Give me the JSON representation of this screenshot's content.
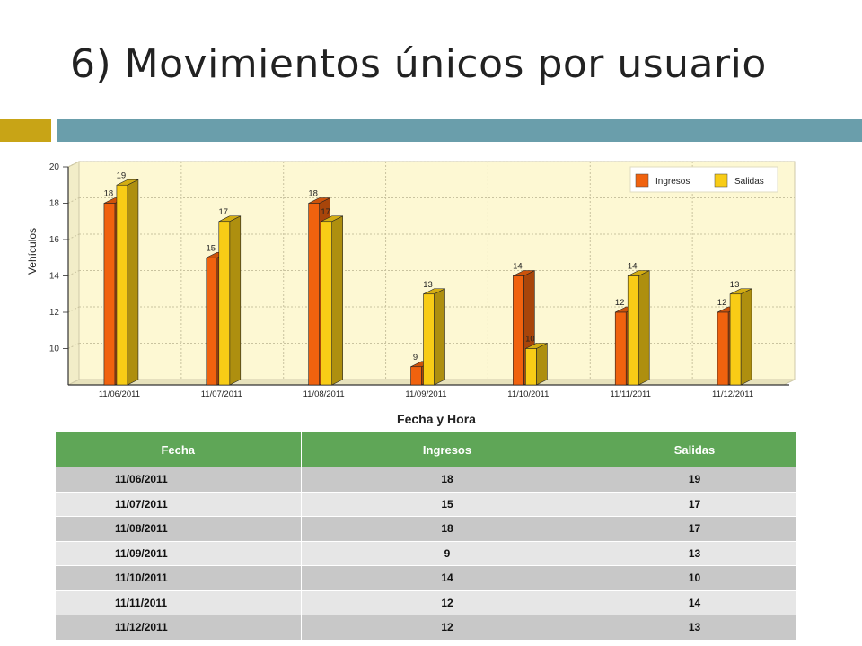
{
  "slide": {
    "title": "6) Movimientos únicos por usuario"
  },
  "colors": {
    "accent_gold": "#c8a416",
    "accent_teal": "#6a9eab",
    "ingresos": "#f0620e",
    "salidas": "#f8cc16",
    "table_header": "#5fa657"
  },
  "chart_data": {
    "type": "bar",
    "categories": [
      "11/06/2011",
      "11/07/2011",
      "11/08/2011",
      "11/09/2011",
      "11/10/2011",
      "11/11/2011",
      "11/12/2011"
    ],
    "series": [
      {
        "name": "Ingresos",
        "values": [
          18,
          15,
          18,
          9,
          14,
          12,
          12
        ]
      },
      {
        "name": "Salidas",
        "values": [
          19,
          17,
          17,
          13,
          10,
          14,
          13
        ]
      }
    ],
    "title": "",
    "xlabel": "Fecha y Hora",
    "ylabel": "Vehículos",
    "ylim": [
      8,
      20
    ],
    "yticks": [
      10,
      12,
      14,
      16,
      18,
      20
    ],
    "grid": true,
    "legend": "top-right",
    "style": "3d"
  },
  "table": {
    "headers": [
      "Fecha",
      "Ingresos",
      "Salidas"
    ],
    "rows": [
      [
        "11/06/2011",
        "18",
        "19"
      ],
      [
        "11/07/2011",
        "15",
        "17"
      ],
      [
        "11/08/2011",
        "18",
        "17"
      ],
      [
        "11/09/2011",
        "9",
        "13"
      ],
      [
        "11/10/2011",
        "14",
        "10"
      ],
      [
        "11/11/2011",
        "12",
        "14"
      ],
      [
        "11/12/2011",
        "12",
        "13"
      ]
    ]
  }
}
